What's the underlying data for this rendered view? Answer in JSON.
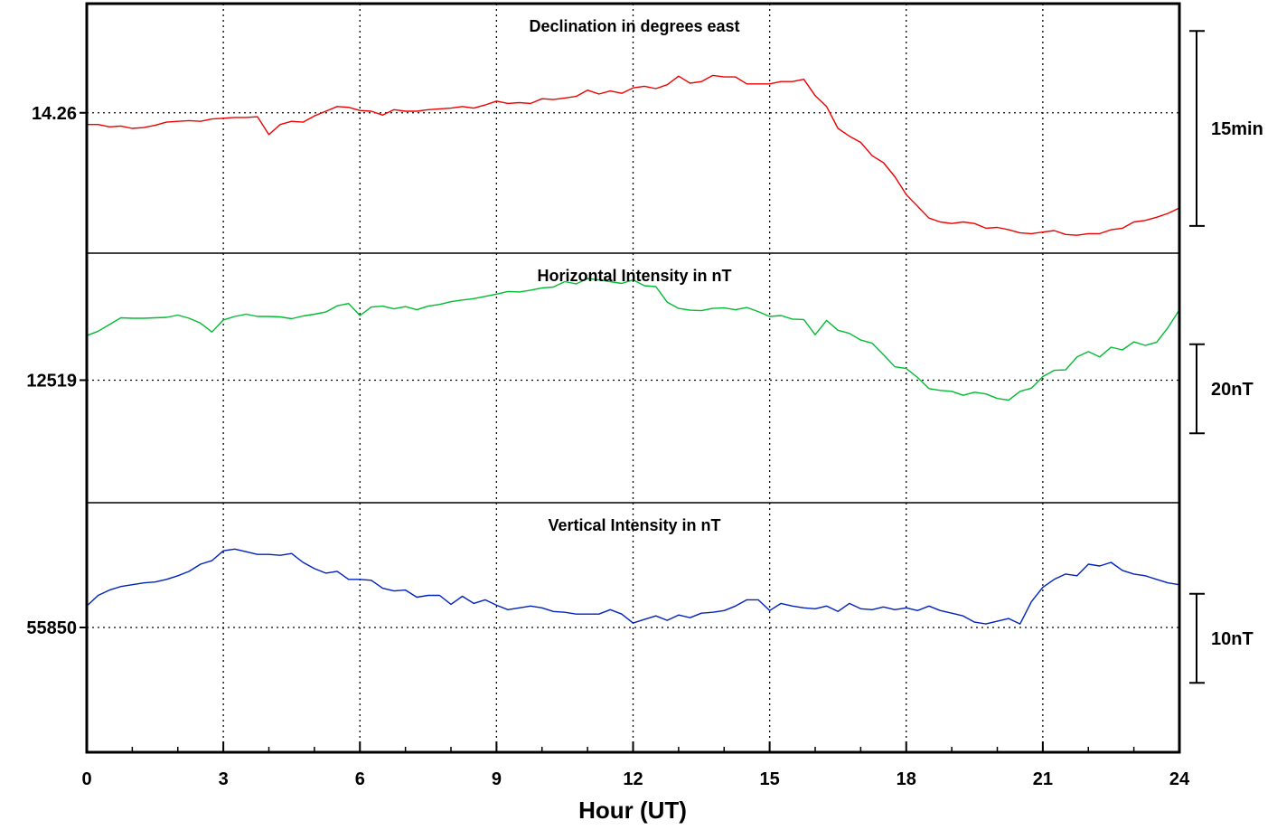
{
  "chart_data": {
    "type": "line",
    "xlabel": "Hour (UT)",
    "xlim": [
      0,
      24
    ],
    "x_ticks": [
      "0",
      "3",
      "6",
      "9",
      "12",
      "15",
      "18",
      "21",
      "24"
    ],
    "x_minor_step": 1,
    "grid": true,
    "panels": [
      {
        "title": "Declination in degrees east",
        "color": "#ee0000",
        "baseline_label": "14.26",
        "baseline_value": 14.26,
        "scale_bar_label": "15min",
        "scale_bar_span": 0.25,
        "ylim": [
          14.08,
          14.4
        ],
        "values": [
          14.245,
          14.245,
          14.242,
          14.243,
          14.24,
          14.241,
          14.244,
          14.248,
          14.249,
          14.25,
          14.249,
          14.252,
          14.253,
          14.254,
          14.254,
          14.255,
          14.232,
          14.245,
          14.249,
          14.248,
          14.256,
          14.262,
          14.268,
          14.267,
          14.263,
          14.262,
          14.257,
          14.264,
          14.262,
          14.262,
          14.264,
          14.265,
          14.266,
          14.268,
          14.266,
          14.27,
          14.275,
          14.272,
          14.273,
          14.272,
          14.278,
          14.277,
          14.279,
          14.281,
          14.289,
          14.284,
          14.288,
          14.285,
          14.292,
          14.294,
          14.291,
          14.296,
          14.307,
          14.298,
          14.3,
          14.308,
          14.306,
          14.306,
          14.297,
          14.297,
          14.297,
          14.3,
          14.3,
          14.303,
          14.282,
          14.268,
          14.24,
          14.23,
          14.222,
          14.205,
          14.196,
          14.178,
          14.155,
          14.14,
          14.125,
          14.12,
          14.118,
          14.12,
          14.118,
          14.112,
          14.113,
          14.11,
          14.106,
          14.105,
          14.107,
          14.109,
          14.104,
          14.103,
          14.105,
          14.105,
          14.11,
          14.112,
          14.12,
          14.122,
          14.126,
          14.131,
          14.138
        ]
      },
      {
        "title": "Horizontal Intensity in nT",
        "color": "#00bb33",
        "baseline_label": "12519",
        "baseline_value": 12519,
        "scale_bar_label": "20nT",
        "scale_bar_span": 20,
        "ylim": [
          12491.5,
          12547.5
        ],
        "values": [
          12529.0,
          12530.0,
          12531.5,
          12533.0,
          12532.9,
          12532.9,
          12533.0,
          12533.1,
          12533.6,
          12532.9,
          12531.8,
          12529.8,
          12532.5,
          12533.3,
          12533.8,
          12533.3,
          12533.3,
          12533.2,
          12532.8,
          12533.4,
          12533.8,
          12534.3,
          12535.7,
          12536.2,
          12533.5,
          12535.4,
          12535.6,
          12535.0,
          12535.5,
          12534.8,
          12535.6,
          12536.0,
          12536.6,
          12537.0,
          12537.3,
          12537.8,
          12538.3,
          12538.9,
          12538.8,
          12539.2,
          12539.7,
          12539.9,
          12541.1,
          12540.6,
          12541.8,
          12541.5,
          12541.1,
          12540.7,
          12541.5,
          12540.2,
          12540.0,
          12536.5,
          12535.1,
          12534.7,
          12534.6,
          12535.1,
          12535.2,
          12534.8,
          12535.3,
          12534.4,
          12533.3,
          12533.5,
          12532.7,
          12532.6,
          12529.2,
          12532.4,
          12530.2,
          12529.5,
          12528.0,
          12527.3,
          12524.7,
          12522.0,
          12521.6,
          12519.6,
          12517.1,
          12516.7,
          12516.5,
          12515.6,
          12516.3,
          12515.9,
          12514.9,
          12514.5,
          12516.5,
          12517.2,
          12519.8,
          12521.2,
          12521.3,
          12524.2,
          12525.4,
          12524.2,
          12526.4,
          12525.8,
          12527.6,
          12526.8,
          12527.5,
          12530.8,
          12534.8
        ]
      },
      {
        "title": "Vertical Intensity in nT",
        "color": "#0022bb",
        "baseline_label": "55850",
        "baseline_value": 55850,
        "scale_bar_label": "10nT",
        "scale_bar_span": 10,
        "ylim": [
          55836,
          55864
        ],
        "values": [
          55852.4,
          55853.6,
          55854.2,
          55854.6,
          55854.8,
          55855.0,
          55855.1,
          55855.4,
          55855.8,
          55856.3,
          55857.1,
          55857.5,
          55858.6,
          55858.8,
          55858.5,
          55858.2,
          55858.2,
          55858.1,
          55858.3,
          55857.3,
          55856.6,
          55856.1,
          55856.3,
          55855.4,
          55855.4,
          55855.3,
          55854.4,
          55854.1,
          55854.2,
          55853.4,
          55853.6,
          55853.6,
          55852.6,
          55853.5,
          55852.7,
          55853.1,
          55852.5,
          55852.0,
          55852.2,
          55852.4,
          55852.2,
          55851.8,
          55851.7,
          55851.5,
          55851.5,
          55851.5,
          55852.0,
          55851.5,
          55850.5,
          55850.9,
          55851.3,
          55850.8,
          55851.4,
          55851.1,
          55851.6,
          55851.7,
          55851.9,
          55852.4,
          55853.1,
          55853.1,
          55851.9,
          55852.7,
          55852.4,
          55852.2,
          55852.1,
          55852.4,
          55851.8,
          55852.7,
          55852.1,
          55852.0,
          55852.3,
          55852.0,
          55852.2,
          55851.9,
          55852.4,
          55851.9,
          55851.6,
          55851.3,
          55850.6,
          55850.4,
          55850.7,
          55851.0,
          55850.4,
          55852.9,
          55854.5,
          55855.4,
          55856.0,
          55855.8,
          55857.1,
          55856.9,
          55857.3,
          55856.4,
          55856.0,
          55855.8,
          55855.4,
          55855.0,
          55854.8
        ]
      }
    ]
  }
}
